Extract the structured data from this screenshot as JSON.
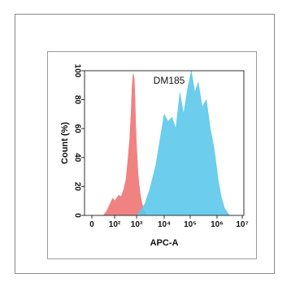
{
  "chart_data": {
    "type": "area",
    "title": "DM185",
    "xlabel": "APC-A",
    "ylabel": "Count (%)",
    "xscale": "biexponential-log",
    "xlim": [
      0,
      10000000
    ],
    "ylim": [
      0,
      100
    ],
    "x_tick_labels": [
      "0",
      "10²",
      "10³",
      "10⁴",
      "10⁵",
      "10⁶",
      "10⁷"
    ],
    "y_tick_labels": [
      "0",
      "20",
      "40",
      "60",
      "80",
      "100"
    ],
    "grid": false,
    "legend": "none",
    "series": [
      {
        "color": "#f07474",
        "x": [
          10,
          20,
          40,
          70,
          100,
          150,
          200,
          260,
          330,
          400,
          480,
          560,
          620,
          700,
          780,
          850,
          920,
          980,
          1040,
          1120,
          1220,
          1360,
          1500,
          1700,
          1900,
          2200,
          2600
        ],
        "y": [
          0,
          3,
          8,
          12,
          10,
          14,
          13,
          18,
          25,
          38,
          52,
          70,
          88,
          98,
          95,
          80,
          62,
          50,
          42,
          30,
          22,
          15,
          10,
          6,
          3,
          1,
          0
        ]
      },
      {
        "color": "#5cc8ea",
        "x": [
          1000,
          2000,
          3000,
          5000,
          7000,
          10000,
          14000,
          20000,
          28000,
          40000,
          56000,
          80000,
          110000,
          150000,
          200000,
          280000,
          400000,
          560000,
          800000,
          1100000,
          1500000,
          2000000,
          2600000,
          3200000
        ],
        "y": [
          0,
          8,
          18,
          35,
          52,
          70,
          65,
          68,
          60,
          85,
          70,
          88,
          100,
          85,
          92,
          75,
          80,
          60,
          45,
          25,
          12,
          5,
          2,
          0
        ]
      }
    ]
  }
}
